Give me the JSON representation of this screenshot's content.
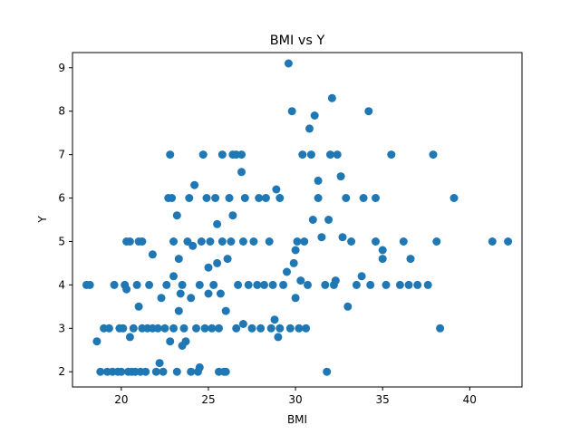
{
  "chart_data": {
    "type": "scatter",
    "title": "BMI vs Y",
    "xlabel": "BMI",
    "ylabel": "Y",
    "xlim": [
      17.2,
      43.0
    ],
    "ylim": [
      1.65,
      9.35
    ],
    "xticks": [
      20,
      25,
      30,
      35,
      40
    ],
    "yticks": [
      2,
      3,
      4,
      5,
      6,
      7,
      8,
      9
    ],
    "grid": false,
    "point_color": "#1f77b4",
    "series": [
      {
        "points": [
          [
            18.0,
            4.0
          ],
          [
            18.2,
            4.0
          ],
          [
            18.6,
            2.7
          ],
          [
            18.8,
            2.0
          ],
          [
            19.0,
            3.0
          ],
          [
            19.2,
            2.0
          ],
          [
            19.3,
            3.0
          ],
          [
            19.5,
            2.0
          ],
          [
            19.6,
            4.0
          ],
          [
            19.8,
            2.0
          ],
          [
            19.9,
            3.0
          ],
          [
            20.0,
            2.0
          ],
          [
            20.1,
            3.0
          ],
          [
            20.2,
            4.0
          ],
          [
            20.3,
            3.9
          ],
          [
            20.3,
            5.0
          ],
          [
            20.4,
            2.0
          ],
          [
            20.5,
            2.8
          ],
          [
            20.5,
            5.0
          ],
          [
            20.6,
            2.0
          ],
          [
            20.7,
            3.0
          ],
          [
            20.8,
            2.0
          ],
          [
            20.9,
            4.0
          ],
          [
            21.0,
            3.5
          ],
          [
            21.0,
            5.0
          ],
          [
            21.1,
            2.0
          ],
          [
            21.2,
            3.0
          ],
          [
            21.2,
            5.0
          ],
          [
            21.4,
            2.0
          ],
          [
            21.5,
            3.0
          ],
          [
            21.6,
            4.0
          ],
          [
            21.8,
            3.0
          ],
          [
            21.8,
            4.7
          ],
          [
            22.0,
            2.0
          ],
          [
            22.1,
            3.0
          ],
          [
            22.2,
            2.2
          ],
          [
            22.3,
            3.7
          ],
          [
            22.4,
            2.0
          ],
          [
            22.5,
            3.0
          ],
          [
            22.6,
            4.0
          ],
          [
            22.7,
            6.0
          ],
          [
            22.8,
            2.7
          ],
          [
            22.8,
            7.0
          ],
          [
            22.9,
            6.0
          ],
          [
            23.0,
            3.0
          ],
          [
            23.0,
            4.2
          ],
          [
            23.0,
            5.0
          ],
          [
            23.2,
            2.0
          ],
          [
            23.2,
            5.6
          ],
          [
            23.3,
            3.4
          ],
          [
            23.3,
            4.6
          ],
          [
            23.4,
            3.8
          ],
          [
            23.5,
            2.6
          ],
          [
            23.5,
            4.0
          ],
          [
            23.6,
            3.0
          ],
          [
            23.7,
            2.7
          ],
          [
            23.8,
            5.0
          ],
          [
            23.9,
            6.0
          ],
          [
            24.0,
            2.0
          ],
          [
            24.0,
            3.7
          ],
          [
            24.1,
            4.9
          ],
          [
            24.2,
            6.3
          ],
          [
            24.3,
            3.0
          ],
          [
            24.4,
            2.0
          ],
          [
            24.5,
            4.0
          ],
          [
            24.5,
            2.1
          ],
          [
            24.6,
            5.0
          ],
          [
            24.7,
            7.0
          ],
          [
            24.8,
            3.0
          ],
          [
            24.9,
            6.0
          ],
          [
            25.0,
            3.8
          ],
          [
            25.0,
            4.4
          ],
          [
            25.1,
            5.0
          ],
          [
            25.2,
            3.0
          ],
          [
            25.3,
            4.0
          ],
          [
            25.4,
            6.0
          ],
          [
            25.5,
            4.5
          ],
          [
            25.5,
            5.4
          ],
          [
            25.6,
            2.0
          ],
          [
            25.6,
            3.0
          ],
          [
            25.7,
            3.8
          ],
          [
            25.8,
            5.0
          ],
          [
            25.8,
            7.0
          ],
          [
            25.9,
            2.0
          ],
          [
            26.0,
            3.4
          ],
          [
            26.0,
            2.0
          ],
          [
            26.1,
            4.6
          ],
          [
            26.2,
            6.0
          ],
          [
            26.3,
            5.0
          ],
          [
            26.4,
            5.6
          ],
          [
            26.4,
            7.0
          ],
          [
            26.6,
            7.0
          ],
          [
            26.6,
            3.0
          ],
          [
            26.7,
            4.0
          ],
          [
            26.9,
            7.0
          ],
          [
            26.9,
            6.6
          ],
          [
            27.0,
            3.1
          ],
          [
            27.0,
            5.0
          ],
          [
            27.1,
            6.0
          ],
          [
            27.3,
            4.0
          ],
          [
            27.5,
            3.0
          ],
          [
            27.6,
            5.0
          ],
          [
            27.8,
            4.0
          ],
          [
            27.9,
            6.0
          ],
          [
            28.0,
            3.0
          ],
          [
            28.2,
            4.0
          ],
          [
            28.3,
            6.0
          ],
          [
            28.5,
            5.0
          ],
          [
            28.6,
            3.0
          ],
          [
            28.7,
            4.0
          ],
          [
            28.8,
            3.2
          ],
          [
            28.9,
            6.2
          ],
          [
            29.0,
            2.8
          ],
          [
            29.1,
            3.0
          ],
          [
            29.1,
            6.0
          ],
          [
            29.3,
            4.0
          ],
          [
            29.5,
            4.3
          ],
          [
            29.6,
            9.1
          ],
          [
            29.7,
            3.0
          ],
          [
            29.8,
            8.0
          ],
          [
            29.9,
            4.5
          ],
          [
            30.0,
            3.7
          ],
          [
            30.0,
            4.8
          ],
          [
            30.1,
            5.0
          ],
          [
            30.2,
            3.0
          ],
          [
            30.3,
            4.1
          ],
          [
            30.4,
            7.0
          ],
          [
            30.5,
            5.0
          ],
          [
            30.6,
            3.0
          ],
          [
            30.7,
            4.0
          ],
          [
            30.8,
            7.6
          ],
          [
            30.9,
            7.0
          ],
          [
            31.0,
            5.5
          ],
          [
            31.1,
            7.9
          ],
          [
            31.3,
            6.4
          ],
          [
            31.3,
            6.0
          ],
          [
            31.5,
            5.1
          ],
          [
            31.7,
            4.0
          ],
          [
            31.8,
            2.0
          ],
          [
            31.9,
            5.5
          ],
          [
            32.0,
            7.0
          ],
          [
            32.1,
            8.3
          ],
          [
            32.2,
            4.0
          ],
          [
            32.3,
            4.1
          ],
          [
            32.4,
            7.0
          ],
          [
            32.6,
            6.5
          ],
          [
            32.7,
            5.1
          ],
          [
            32.9,
            6.0
          ],
          [
            33.0,
            3.5
          ],
          [
            33.2,
            5.0
          ],
          [
            33.5,
            4.0
          ],
          [
            33.8,
            4.2
          ],
          [
            33.9,
            6.0
          ],
          [
            34.2,
            8.0
          ],
          [
            34.3,
            4.0
          ],
          [
            34.6,
            6.0
          ],
          [
            34.6,
            5.0
          ],
          [
            35.0,
            4.8
          ],
          [
            35.0,
            4.6
          ],
          [
            35.2,
            4.0
          ],
          [
            35.5,
            7.0
          ],
          [
            36.0,
            4.0
          ],
          [
            36.2,
            5.0
          ],
          [
            36.5,
            4.0
          ],
          [
            36.6,
            4.6
          ],
          [
            37.0,
            4.0
          ],
          [
            37.6,
            4.0
          ],
          [
            37.9,
            7.0
          ],
          [
            38.1,
            5.0
          ],
          [
            38.3,
            3.0
          ],
          [
            39.1,
            6.0
          ],
          [
            41.3,
            5.0
          ],
          [
            42.2,
            5.0
          ]
        ]
      }
    ]
  }
}
